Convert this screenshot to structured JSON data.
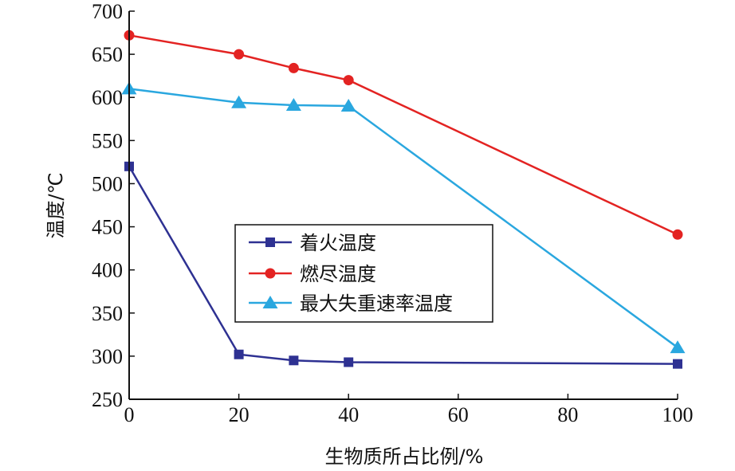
{
  "chart_data": {
    "type": "line",
    "x": [
      0,
      20,
      30,
      40,
      100
    ],
    "xlabel": "生物质所占比例/%",
    "ylabel": "温度/℃",
    "xlim": [
      0,
      100
    ],
    "ylim": [
      250,
      700
    ],
    "xticks": [
      0,
      20,
      40,
      60,
      80,
      100
    ],
    "yticks": [
      250,
      300,
      350,
      400,
      450,
      500,
      550,
      600,
      650,
      700
    ],
    "grid": false,
    "legend_position": "center-left",
    "series": [
      {
        "name": "着火温度",
        "values": [
          520,
          302,
          295,
          293,
          291
        ],
        "color": "#2e3192",
        "marker": "square"
      },
      {
        "name": "燃尽温度",
        "values": [
          672,
          650,
          634,
          620,
          441
        ],
        "color": "#e32322",
        "marker": "circle"
      },
      {
        "name": "最大失重速率温度",
        "values": [
          610,
          594,
          591,
          590,
          310
        ],
        "color": "#2aa7df",
        "marker": "triangle"
      }
    ]
  }
}
